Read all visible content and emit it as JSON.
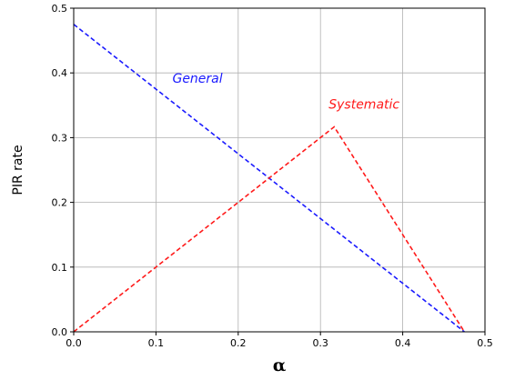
{
  "chart_data": {
    "type": "line",
    "xlabel": "α",
    "ylabel": "PIR rate",
    "xlim": [
      0,
      0.5
    ],
    "ylim": [
      0,
      0.5
    ],
    "xticks": [
      "0.0",
      "0.1",
      "0.2",
      "0.3",
      "0.4",
      "0.5"
    ],
    "yticks": [
      "0.0",
      "0.1",
      "0.2",
      "0.3",
      "0.4",
      "0.5"
    ],
    "grid": true,
    "series": [
      {
        "name": "General",
        "color": "#1a1aff",
        "line_style": "dashed",
        "x": [
          0,
          0.475
        ],
        "y": [
          0.475,
          0
        ],
        "label_anchor": [
          0.12,
          0.385
        ]
      },
      {
        "name": "Systematic",
        "color": "#ff1a1a",
        "line_style": "dashed",
        "x": [
          0,
          0.3167,
          0.475
        ],
        "y": [
          0,
          0.3167,
          0
        ],
        "label_anchor": [
          0.31,
          0.345
        ]
      }
    ]
  }
}
